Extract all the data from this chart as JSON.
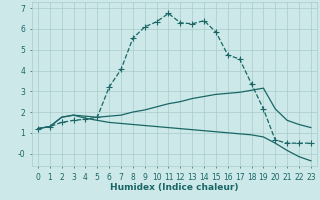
{
  "xlabel": "Humidex (Indice chaleur)",
  "xlim": [
    -0.5,
    23.5
  ],
  "ylim": [
    -0.6,
    7.3
  ],
  "bg_color": "#cce8e8",
  "grid_color": "#aacccc",
  "line_color": "#1a6666",
  "yticks": [
    0,
    1,
    2,
    3,
    4,
    5,
    6,
    7
  ],
  "ytick_labels": [
    "-0",
    "1",
    "2",
    "3",
    "4",
    "5",
    "6",
    "7"
  ],
  "line1_x": [
    0,
    1,
    2,
    3,
    4,
    5,
    6,
    7,
    8,
    9,
    10,
    11,
    12,
    13,
    14,
    15,
    16,
    17,
    18,
    19,
    20,
    21,
    22,
    23
  ],
  "line1_y": [
    1.2,
    1.3,
    1.5,
    1.6,
    1.65,
    1.75,
    3.2,
    4.05,
    5.55,
    6.1,
    6.35,
    6.75,
    6.3,
    6.25,
    6.4,
    5.85,
    4.75,
    4.55,
    3.35,
    2.15,
    0.65,
    0.5,
    0.5,
    0.5
  ],
  "line2_x": [
    0,
    1,
    2,
    3,
    4,
    5,
    6,
    7,
    8,
    9,
    10,
    11,
    12,
    13,
    14,
    15,
    16,
    17,
    18,
    19,
    20,
    21,
    22,
    23
  ],
  "line2_y": [
    1.2,
    1.3,
    1.75,
    1.85,
    1.8,
    1.75,
    1.8,
    1.85,
    2.0,
    2.1,
    2.25,
    2.4,
    2.5,
    2.65,
    2.75,
    2.85,
    2.9,
    2.95,
    3.05,
    3.15,
    2.15,
    1.6,
    1.4,
    1.25
  ],
  "line3_x": [
    0,
    1,
    2,
    3,
    4,
    5,
    6,
    7,
    8,
    9,
    10,
    11,
    12,
    13,
    14,
    15,
    16,
    17,
    18,
    19,
    20,
    21,
    22,
    23
  ],
  "line3_y": [
    1.2,
    1.3,
    1.75,
    1.85,
    1.7,
    1.6,
    1.5,
    1.45,
    1.4,
    1.35,
    1.3,
    1.25,
    1.2,
    1.15,
    1.1,
    1.05,
    1.0,
    0.95,
    0.9,
    0.8,
    0.5,
    0.15,
    -0.15,
    -0.35
  ],
  "tick_fontsize": 5.5,
  "axis_fontsize": 6.5,
  "marker_size": 3.5,
  "linewidth": 0.9
}
